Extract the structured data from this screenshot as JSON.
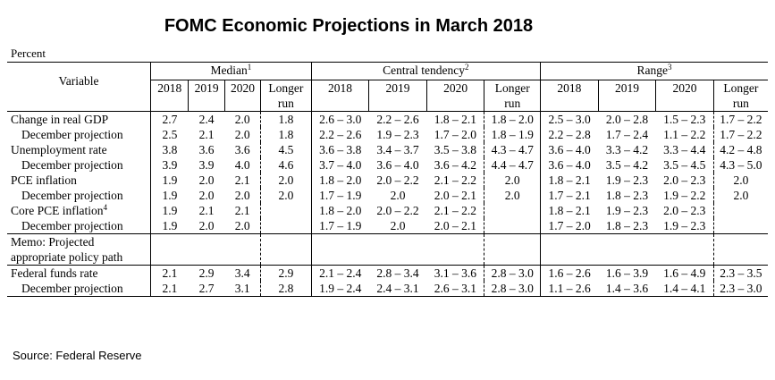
{
  "title": "FOMC Economic Projections in March 2018",
  "unit_label": "Percent",
  "source": "Source: Federal Reserve",
  "header": {
    "variable": "Variable",
    "groups": [
      {
        "label": "Median",
        "note": "1"
      },
      {
        "label": "Central tendency",
        "note": "2"
      },
      {
        "label": "Range",
        "note": "3"
      }
    ],
    "years": [
      "2018",
      "2019",
      "2020"
    ],
    "longer_run": [
      "Longer",
      "run"
    ]
  },
  "sections": [
    {
      "rows": [
        {
          "label": "Change in real GDP",
          "note": "",
          "median": [
            "2.7",
            "2.4",
            "2.0",
            "1.8"
          ],
          "central": [
            "2.6 – 3.0",
            "2.2 – 2.6",
            "1.8 – 2.1",
            "1.8 – 2.0"
          ],
          "range": [
            "2.5 – 3.0",
            "2.0 – 2.8",
            "1.5 – 2.3",
            "1.7 – 2.2"
          ]
        },
        {
          "label": "December projection",
          "note": "",
          "median": [
            "2.5",
            "2.1",
            "2.0",
            "1.8"
          ],
          "central": [
            "2.2 – 2.6",
            "1.9 – 2.3",
            "1.7 – 2.0",
            "1.8 – 1.9"
          ],
          "range": [
            "2.2 – 2.8",
            "1.7 – 2.4",
            "1.1 – 2.2",
            "1.7 – 2.2"
          ]
        }
      ]
    },
    {
      "rows": [
        {
          "label": "Unemployment rate",
          "note": "",
          "median": [
            "3.8",
            "3.6",
            "3.6",
            "4.5"
          ],
          "central": [
            "3.6 – 3.8",
            "3.4 – 3.7",
            "3.5 – 3.8",
            "4.3 – 4.7"
          ],
          "range": [
            "3.6 – 4.0",
            "3.3 – 4.2",
            "3.3 – 4.4",
            "4.2 – 4.8"
          ]
        },
        {
          "label": "December projection",
          "note": "",
          "median": [
            "3.9",
            "3.9",
            "4.0",
            "4.6"
          ],
          "central": [
            "3.7 – 4.0",
            "3.6 – 4.0",
            "3.6 – 4.2",
            "4.4 – 4.7"
          ],
          "range": [
            "3.6 – 4.0",
            "3.5 – 4.2",
            "3.5 – 4.5",
            "4.3 – 5.0"
          ]
        }
      ]
    },
    {
      "rows": [
        {
          "label": "PCE inflation",
          "note": "",
          "median": [
            "1.9",
            "2.0",
            "2.1",
            "2.0"
          ],
          "central": [
            "1.8 – 2.0",
            "2.0 – 2.2",
            "2.1 – 2.2",
            "2.0"
          ],
          "range": [
            "1.8 – 2.1",
            "1.9 – 2.3",
            "2.0 – 2.3",
            "2.0"
          ]
        },
        {
          "label": "December projection",
          "note": "",
          "median": [
            "1.9",
            "2.0",
            "2.0",
            "2.0"
          ],
          "central": [
            "1.7 – 1.9",
            "2.0",
            "2.0 – 2.1",
            "2.0"
          ],
          "range": [
            "1.7 – 2.1",
            "1.8 – 2.3",
            "1.9 – 2.2",
            "2.0"
          ]
        }
      ]
    },
    {
      "rows": [
        {
          "label": "Core PCE inflation",
          "note": "4",
          "median": [
            "1.9",
            "2.1",
            "2.1",
            ""
          ],
          "central": [
            "1.8 – 2.0",
            "2.0 – 2.2",
            "2.1 – 2.2",
            ""
          ],
          "range": [
            "1.8 – 2.1",
            "1.9 – 2.3",
            "2.0 – 2.3",
            ""
          ]
        },
        {
          "label": "December projection",
          "note": "",
          "median": [
            "1.9",
            "2.0",
            "2.0",
            ""
          ],
          "central": [
            "1.7 – 1.9",
            "2.0",
            "2.0 – 2.1",
            ""
          ],
          "range": [
            "1.7 – 2.0",
            "1.8 – 2.3",
            "1.9 – 2.3",
            ""
          ]
        }
      ]
    }
  ],
  "memo": [
    "Memo: Projected",
    "appropriate policy path"
  ],
  "federal_funds": {
    "rows": [
      {
        "label": "Federal funds rate",
        "note": "",
        "median": [
          "2.1",
          "2.9",
          "3.4",
          "2.9"
        ],
        "central": [
          "2.1 – 2.4",
          "2.8 – 3.4",
          "3.1 – 3.6",
          "2.8 – 3.0"
        ],
        "range": [
          "1.6 – 2.6",
          "1.6 – 3.9",
          "1.6 – 4.9",
          "2.3 – 3.5"
        ]
      },
      {
        "label": "December projection",
        "note": "",
        "median": [
          "2.1",
          "2.7",
          "3.1",
          "2.8"
        ],
        "central": [
          "1.9 – 2.4",
          "2.4 – 3.1",
          "2.6 – 3.1",
          "2.8 – 3.0"
        ],
        "range": [
          "1.1 – 2.6",
          "1.4 – 3.6",
          "1.4 – 4.1",
          "2.3 – 3.0"
        ]
      }
    ]
  }
}
